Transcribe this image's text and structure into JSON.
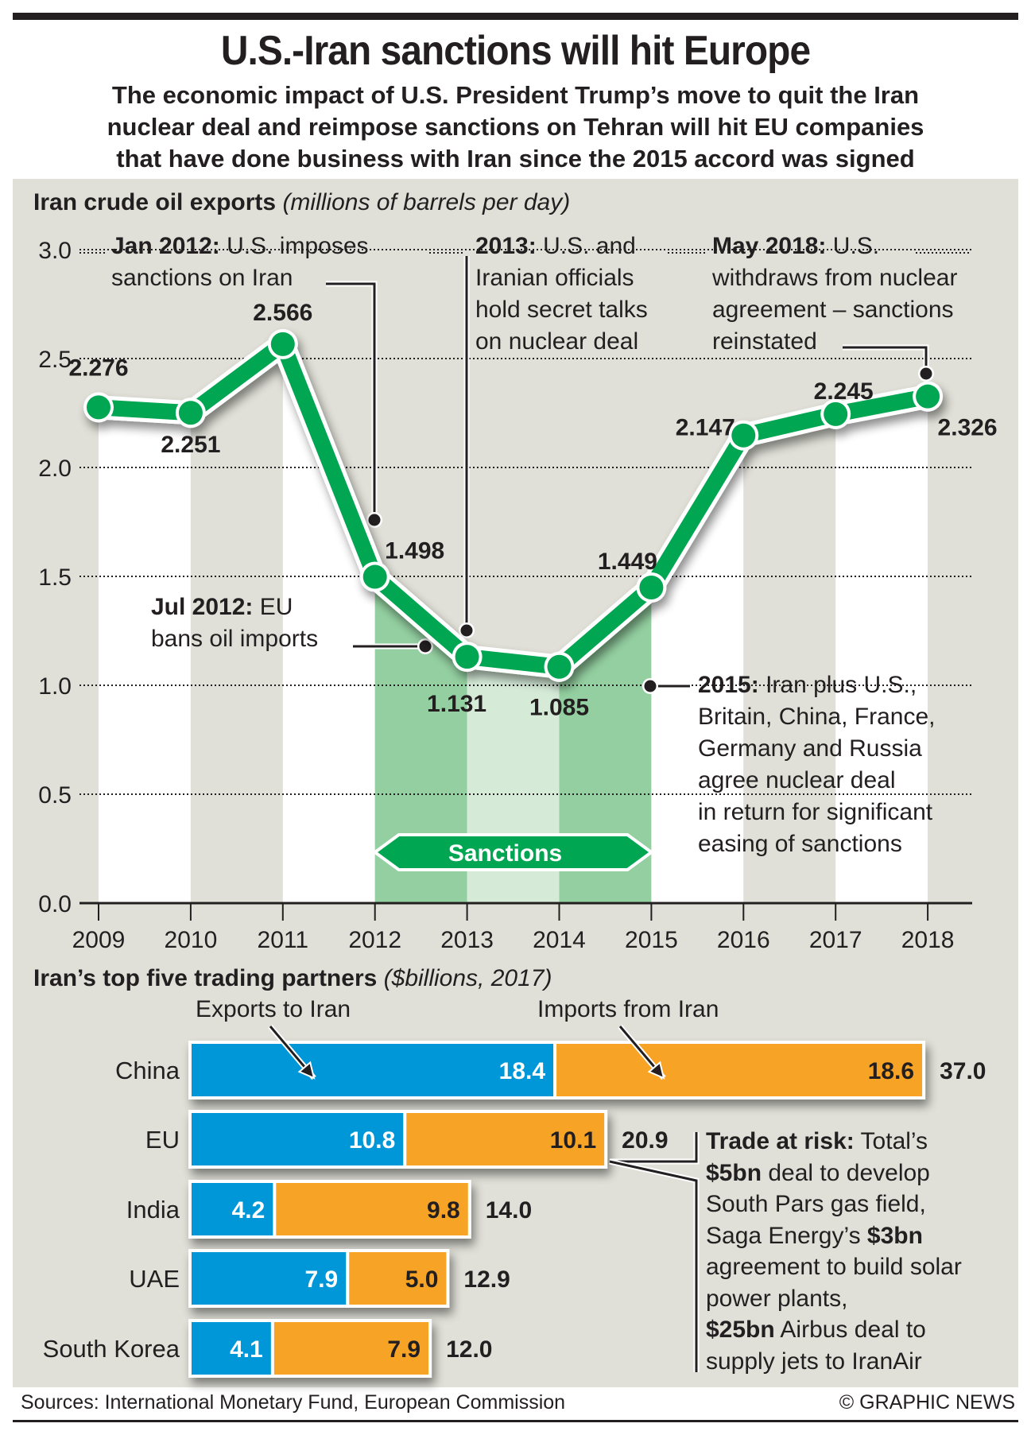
{
  "header": {
    "title": "U.S.-Iran sanctions will hit Europe",
    "subtitle_lines": [
      "The economic impact of U.S. President Trump’s move to quit the Iran",
      "nuclear deal and reimpose sanctions on Tehran will hit EU companies",
      "that have done business with Iran since the 2015 accord was signed"
    ]
  },
  "colors": {
    "line_green": "#00a651",
    "sanction_dark": "#93cfa0",
    "sanction_light": "#d5ebd8",
    "panel_gray": "#e0e0d8",
    "exports_blue": "#0097d9",
    "imports_orange": "#f7a427",
    "text": "#231f20"
  },
  "chart_data": [
    {
      "type": "line",
      "title": "Iran crude oil exports",
      "subtitle": "(millions of barrels per day)",
      "x": [
        "2009",
        "2010",
        "2011",
        "2012",
        "2013",
        "2014",
        "2015",
        "2016",
        "2017",
        "2018"
      ],
      "series": [
        {
          "name": "Iran crude oil exports",
          "values": [
            2.276,
            2.251,
            2.566,
            1.498,
            1.131,
            1.085,
            1.449,
            2.147,
            2.245,
            2.326
          ]
        }
      ],
      "data_labels": [
        "2.276",
        "2.251",
        "2.566",
        "1.498",
        "1.131",
        "1.085",
        "1.449",
        "2.147",
        "2.245",
        "2.326"
      ],
      "ylim": [
        0,
        3.0
      ],
      "yticks": [
        "0.0",
        "0.5",
        "1.0",
        "1.5",
        "2.0",
        "2.5",
        "3.0"
      ],
      "grid": true,
      "shaded_period": {
        "label": "Sanctions",
        "from": "2012",
        "to": "2015"
      },
      "annotations": [
        {
          "id": "jan2012",
          "bold": "Jan 2012:",
          "lines": [
            "U.S. imposes",
            "sanctions on Iran"
          ]
        },
        {
          "id": "jul2012",
          "bold": "Jul 2012:",
          "lines": [
            "EU",
            "bans oil imports"
          ]
        },
        {
          "id": "y2013",
          "bold": "2013:",
          "lines": [
            "U.S. and",
            "Iranian officials",
            "hold secret talks",
            "on nuclear deal"
          ]
        },
        {
          "id": "y2015",
          "bold": "2015:",
          "lines": [
            "Iran plus U.S.,",
            "Britain, China, France,",
            "Germany and Russia",
            "agree nuclear deal",
            "in return for significant",
            "easing of sanctions"
          ]
        },
        {
          "id": "may2018",
          "bold": "May 2018:",
          "lines": [
            "U.S.",
            "withdraws from nuclear",
            "agreement – sanctions",
            "reinstated"
          ]
        }
      ]
    },
    {
      "type": "bar",
      "orientation": "horizontal",
      "stacked": true,
      "title": "Iran’s top five trading partners",
      "subtitle": "($billions, 2017)",
      "categories": [
        "China",
        "EU",
        "India",
        "UAE",
        "South Korea"
      ],
      "series": [
        {
          "name": "Exports to Iran",
          "values": [
            18.4,
            10.8,
            4.2,
            7.9,
            4.1
          ]
        },
        {
          "name": "Imports from Iran",
          "values": [
            18.6,
            10.1,
            9.8,
            5.0,
            7.9
          ]
        }
      ],
      "totals": [
        "37.0",
        "20.9",
        "14.0",
        "12.9",
        "12.0"
      ],
      "value_labels_exports": [
        "18.4",
        "10.8",
        "4.2",
        "7.9",
        "4.1"
      ],
      "value_labels_imports": [
        "18.6",
        "10.1",
        "9.8",
        "5.0",
        "7.9"
      ],
      "legend": [
        "Exports to Iran",
        "Imports from Iran"
      ]
    }
  ],
  "trade_at_risk": {
    "bold_lead": "Trade at risk:",
    "text_runs": [
      [
        {
          "b": true,
          "t": "Trade at risk:"
        },
        {
          "b": false,
          "t": " Total’s"
        }
      ],
      [
        {
          "b": true,
          "t": "$5bn"
        },
        {
          "b": false,
          "t": " deal to develop"
        }
      ],
      [
        {
          "b": false,
          "t": "South Pars gas field,"
        }
      ],
      [
        {
          "b": false,
          "t": "Saga Energy’s "
        },
        {
          "b": true,
          "t": "$3bn"
        }
      ],
      [
        {
          "b": false,
          "t": "agreement to build solar"
        }
      ],
      [
        {
          "b": false,
          "t": "power plants,"
        }
      ],
      [
        {
          "b": true,
          "t": "$25bn"
        },
        {
          "b": false,
          "t": " Airbus deal to"
        }
      ],
      [
        {
          "b": false,
          "t": "supply jets to IranAir"
        }
      ]
    ]
  },
  "footer": {
    "sources": "Sources:  International Monetary Fund, European Commission",
    "credit": "© GRAPHIC NEWS"
  }
}
